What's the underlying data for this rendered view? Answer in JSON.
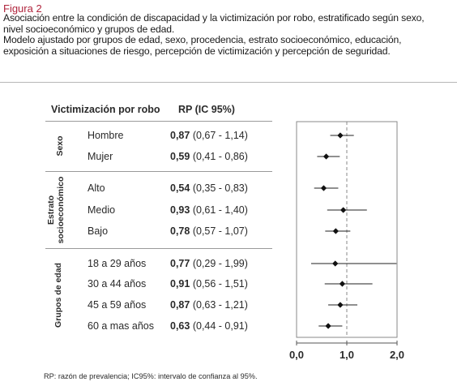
{
  "figure": {
    "label": "Figura 2",
    "caption_lines": [
      "Asociación entre la condición de discapacidad y la victimización por robo, estratificado según sexo,",
      "nivel socioeconómico y grupos de edad.",
      "Modelo ajustado por grupos de edad, sexo, procedencia, estrato socioeconómico, educación,",
      "exposición a situaciones de riesgo, percepción de victimización y percepción de seguridad."
    ],
    "footnote": "RP: razón de prevalencia; IC95%: intervalo de confianza al 95%."
  },
  "table": {
    "col1_header": "Victimización por robo",
    "col2_header": "RP (IC 95%)",
    "groups": [
      {
        "label": "Sexo",
        "rows": [
          {
            "category": "Hombre",
            "rp": "0,87",
            "ci": "(0,67 - 1,14)"
          },
          {
            "category": "Mujer",
            "rp": "0,59",
            "ci": "(0,41 - 0,86)"
          }
        ]
      },
      {
        "label": "Estrato socioeconómico",
        "label_lines": [
          "Estrato",
          "socioeconómico"
        ],
        "rows": [
          {
            "category": "Alto",
            "rp": "0,54",
            "ci": "(0,35 - 0,83)"
          },
          {
            "category": "Medio",
            "rp": "0,93",
            "ci": "(0,61 - 1,40)"
          },
          {
            "category": "Bajo",
            "rp": "0,78",
            "ci": "(0,57 - 1,07)"
          }
        ]
      },
      {
        "label": "Grupos de edad",
        "rows": [
          {
            "category": "18 a 29 años",
            "rp": "0,77",
            "ci": "(0,29 - 1,99)"
          },
          {
            "category": "30 a 44 años",
            "rp": "0,91",
            "ci": "(0,56 - 1,51)"
          },
          {
            "category": "45 a 59 años",
            "rp": "0,87",
            "ci": "(0,63 - 1,21)"
          },
          {
            "category": "60 a mas años",
            "rp": "0,63",
            "ci": "(0,44 - 0,91)"
          }
        ]
      }
    ]
  },
  "chart_data": {
    "type": "scatter",
    "title": "",
    "xlabel": "",
    "ylabel": "",
    "xlim": [
      0,
      2
    ],
    "x_ticks": [
      "0,0",
      "1,0",
      "2,0"
    ],
    "reference_line": 1.0,
    "grid": false,
    "categories": [
      "Hombre",
      "Mujer",
      "Alto",
      "Medio",
      "Bajo",
      "18 a 29 años",
      "30 a 44 años",
      "45 a 59 años",
      "60 a mas años"
    ],
    "points": [
      {
        "category": "Hombre",
        "estimate": 0.87,
        "lower": 0.67,
        "upper": 1.14
      },
      {
        "category": "Mujer",
        "estimate": 0.59,
        "lower": 0.41,
        "upper": 0.86
      },
      {
        "category": "Alto",
        "estimate": 0.54,
        "lower": 0.35,
        "upper": 0.83
      },
      {
        "category": "Medio",
        "estimate": 0.93,
        "lower": 0.61,
        "upper": 1.4
      },
      {
        "category": "Bajo",
        "estimate": 0.78,
        "lower": 0.57,
        "upper": 1.07
      },
      {
        "category": "18 a 29 años",
        "estimate": 0.77,
        "lower": 0.29,
        "upper": 1.99
      },
      {
        "category": "30 a 44 años",
        "estimate": 0.91,
        "lower": 0.56,
        "upper": 1.51
      },
      {
        "category": "45 a 59 años",
        "estimate": 0.87,
        "lower": 0.63,
        "upper": 1.21
      },
      {
        "category": "60 a mas años",
        "estimate": 0.63,
        "lower": 0.44,
        "upper": 0.91
      }
    ]
  }
}
